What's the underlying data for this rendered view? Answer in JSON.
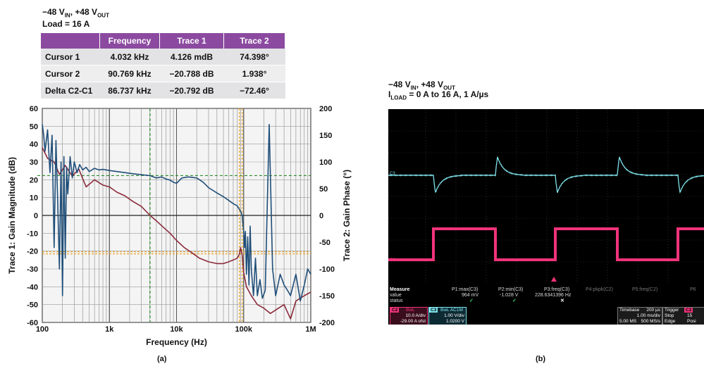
{
  "panel_a": {
    "title_main": "−48 V",
    "title_sub1": "IN",
    "title_mid": ", +48 V",
    "title_sub2": "OUT",
    "load": "Load = 16 A",
    "caption": "(a)",
    "table": {
      "headers": [
        "",
        "Frequency",
        "Trace 1",
        "Trace 2"
      ],
      "rows": [
        [
          "Cursor 1",
          "4.032 kHz",
          "4.126 mdB",
          "74.398°"
        ],
        [
          "Cursor 2",
          "90.769 kHz",
          "−20.788 dB",
          "1.938°"
        ],
        [
          "Delta C2-C1",
          "86.737 kHz",
          "−20.792 dB",
          "−72.46°"
        ]
      ],
      "header_color": "#8b4aa0"
    }
  },
  "panel_b": {
    "title_main": "−48 V",
    "title_sub1": "IN",
    "title_mid": ", +48 V",
    "title_sub2": "OUT",
    "load_pre": "I",
    "load_sub": "LOAD",
    "load_post": " = 0 A to 16 A, 1 A/µs",
    "caption": "(b)",
    "scope": {
      "measure_labels": [
        "Measure",
        "value",
        "status"
      ],
      "p1_name": "P1:max(C3)",
      "p1_value": "964 mV",
      "p2_name": "P2:min(C3)",
      "p2_value": "-1.028 V",
      "p3_name": "P3:freq(C3)",
      "p3_value": "228.6341396 Hz",
      "p4_name": "P4:pkpk(C2)",
      "p5_name": "P5:freq(C2)",
      "p6_name": "P6",
      "check": "✓",
      "cross": "✕",
      "c2_tag": "C2",
      "c2_mode": "BwL",
      "c2_scale": "10.0 A/div",
      "c2_offset": "-29.00 A ofst",
      "c3_tag": "C3",
      "c3_mode": "BwL AC1M",
      "c3_scale": "1.00 V/div",
      "c3_offset": "1.0200 V",
      "timebase_label": "Timebase",
      "timebase_value": "200 µs",
      "time_div": "1.00 ms/div",
      "samples": "5.00 MS",
      "rate": "500 MS/s",
      "trigger_label": "Trigger",
      "trigger_tag": "C2",
      "stop_label": "Stop",
      "stop_value": "15",
      "edge_label": "Edge",
      "edge_value": "Posi",
      "colors": {
        "ch3": "#7fe3ec",
        "ch2": "#f0337a",
        "green": "#3ddc6a"
      }
    }
  },
  "chart_data": {
    "type": "line",
    "title": "",
    "xlabel": "Frequency (Hz)",
    "ylabel": "Trace 1: Gain Magnitude (dB)",
    "y2label": "Trace 2: Gain Phase (°)",
    "xscale": "log",
    "xlim": [
      100,
      1000000
    ],
    "ylim": [
      -60,
      60
    ],
    "y2lim": [
      -200,
      200
    ],
    "x_ticks": [
      "100",
      "1k",
      "10k",
      "100k",
      "1M"
    ],
    "y_ticks": [
      "60",
      "50",
      "40",
      "30",
      "20",
      "10",
      "0",
      "-10",
      "-20",
      "-30",
      "-40",
      "-50",
      "-60"
    ],
    "y2_ticks": [
      "200",
      "150",
      "100",
      "50",
      "0",
      "-50",
      "-100",
      "-150",
      "-200"
    ],
    "grid": true,
    "cursors": {
      "cursor1": {
        "freq": 4032,
        "gain": 0.004,
        "phase": 74.4,
        "color": "#2a8a2a"
      },
      "cursor2": {
        "freq": 90769,
        "gain": -20.8,
        "phase": 1.9,
        "color": "#e8a020"
      }
    },
    "series": [
      {
        "axis": "y1",
        "color": "#8b2a3a",
        "x": [
          100,
          120,
          150,
          180,
          220,
          280,
          350,
          450,
          600,
          800,
          1000,
          1300,
          1700,
          2200,
          3000,
          4032,
          5000,
          6500,
          8000,
          10000,
          13000,
          17000,
          22000,
          30000,
          40000,
          50000,
          60000,
          70000,
          80000,
          86000,
          90000,
          95000,
          100000,
          110000,
          130000,
          160000,
          200000,
          250000,
          300000,
          400000,
          500000,
          600000,
          800000,
          1000000
        ],
        "y": [
          38,
          32,
          30,
          23,
          28,
          22,
          26,
          16,
          20,
          17,
          16,
          13,
          11,
          8,
          5,
          0,
          -3,
          -7,
          -10,
          -14,
          -18,
          -21,
          -24,
          -26,
          -27,
          -27,
          -26,
          -25,
          -24,
          -22,
          -18,
          -22,
          -32,
          -40,
          -45,
          -50,
          -52,
          -55,
          -53,
          -50,
          -58,
          -48,
          -45,
          -43
        ]
      },
      {
        "axis": "y2",
        "color": "#1f4e79",
        "x": [
          100,
          105,
          110,
          120,
          130,
          140,
          150,
          160,
          170,
          180,
          190,
          200,
          210,
          220,
          230,
          240,
          260,
          280,
          300,
          330,
          360,
          400,
          450,
          500,
          600,
          700,
          800,
          1000,
          1300,
          1700,
          2200,
          3000,
          4032,
          5000,
          6000,
          7000,
          8000,
          9000,
          10000,
          12000,
          15000,
          20000,
          25000,
          30000,
          40000,
          50000,
          60000,
          70000,
          80000,
          90000,
          95000,
          100000,
          103000,
          106000,
          110000,
          115000,
          120000,
          125000,
          130000,
          140000,
          150000,
          160000,
          175000,
          190000,
          210000,
          240000,
          270000,
          300000,
          350000,
          400000,
          450000,
          500000,
          600000,
          700000,
          800000,
          900000,
          1000000
        ],
        "y": [
          170,
          150,
          120,
          160,
          80,
          150,
          -60,
          140,
          20,
          -100,
          100,
          -150,
          110,
          -80,
          90,
          40,
          110,
          70,
          100,
          80,
          95,
          85,
          90,
          82,
          88,
          85,
          86,
          84,
          82,
          80,
          78,
          76,
          74.4,
          70,
          72,
          68,
          66,
          62,
          60,
          70,
          72,
          70,
          62,
          52,
          42,
          35,
          28,
          22,
          18,
          8,
          1,
          -30,
          -60,
          -30,
          -110,
          -40,
          -130,
          -20,
          -100,
          -150,
          -80,
          -150,
          -120,
          -155,
          -140,
          170,
          -100,
          -150,
          -110,
          -130,
          -140,
          -150,
          -110,
          -160,
          -130,
          -100,
          -110
        ]
      }
    ]
  }
}
